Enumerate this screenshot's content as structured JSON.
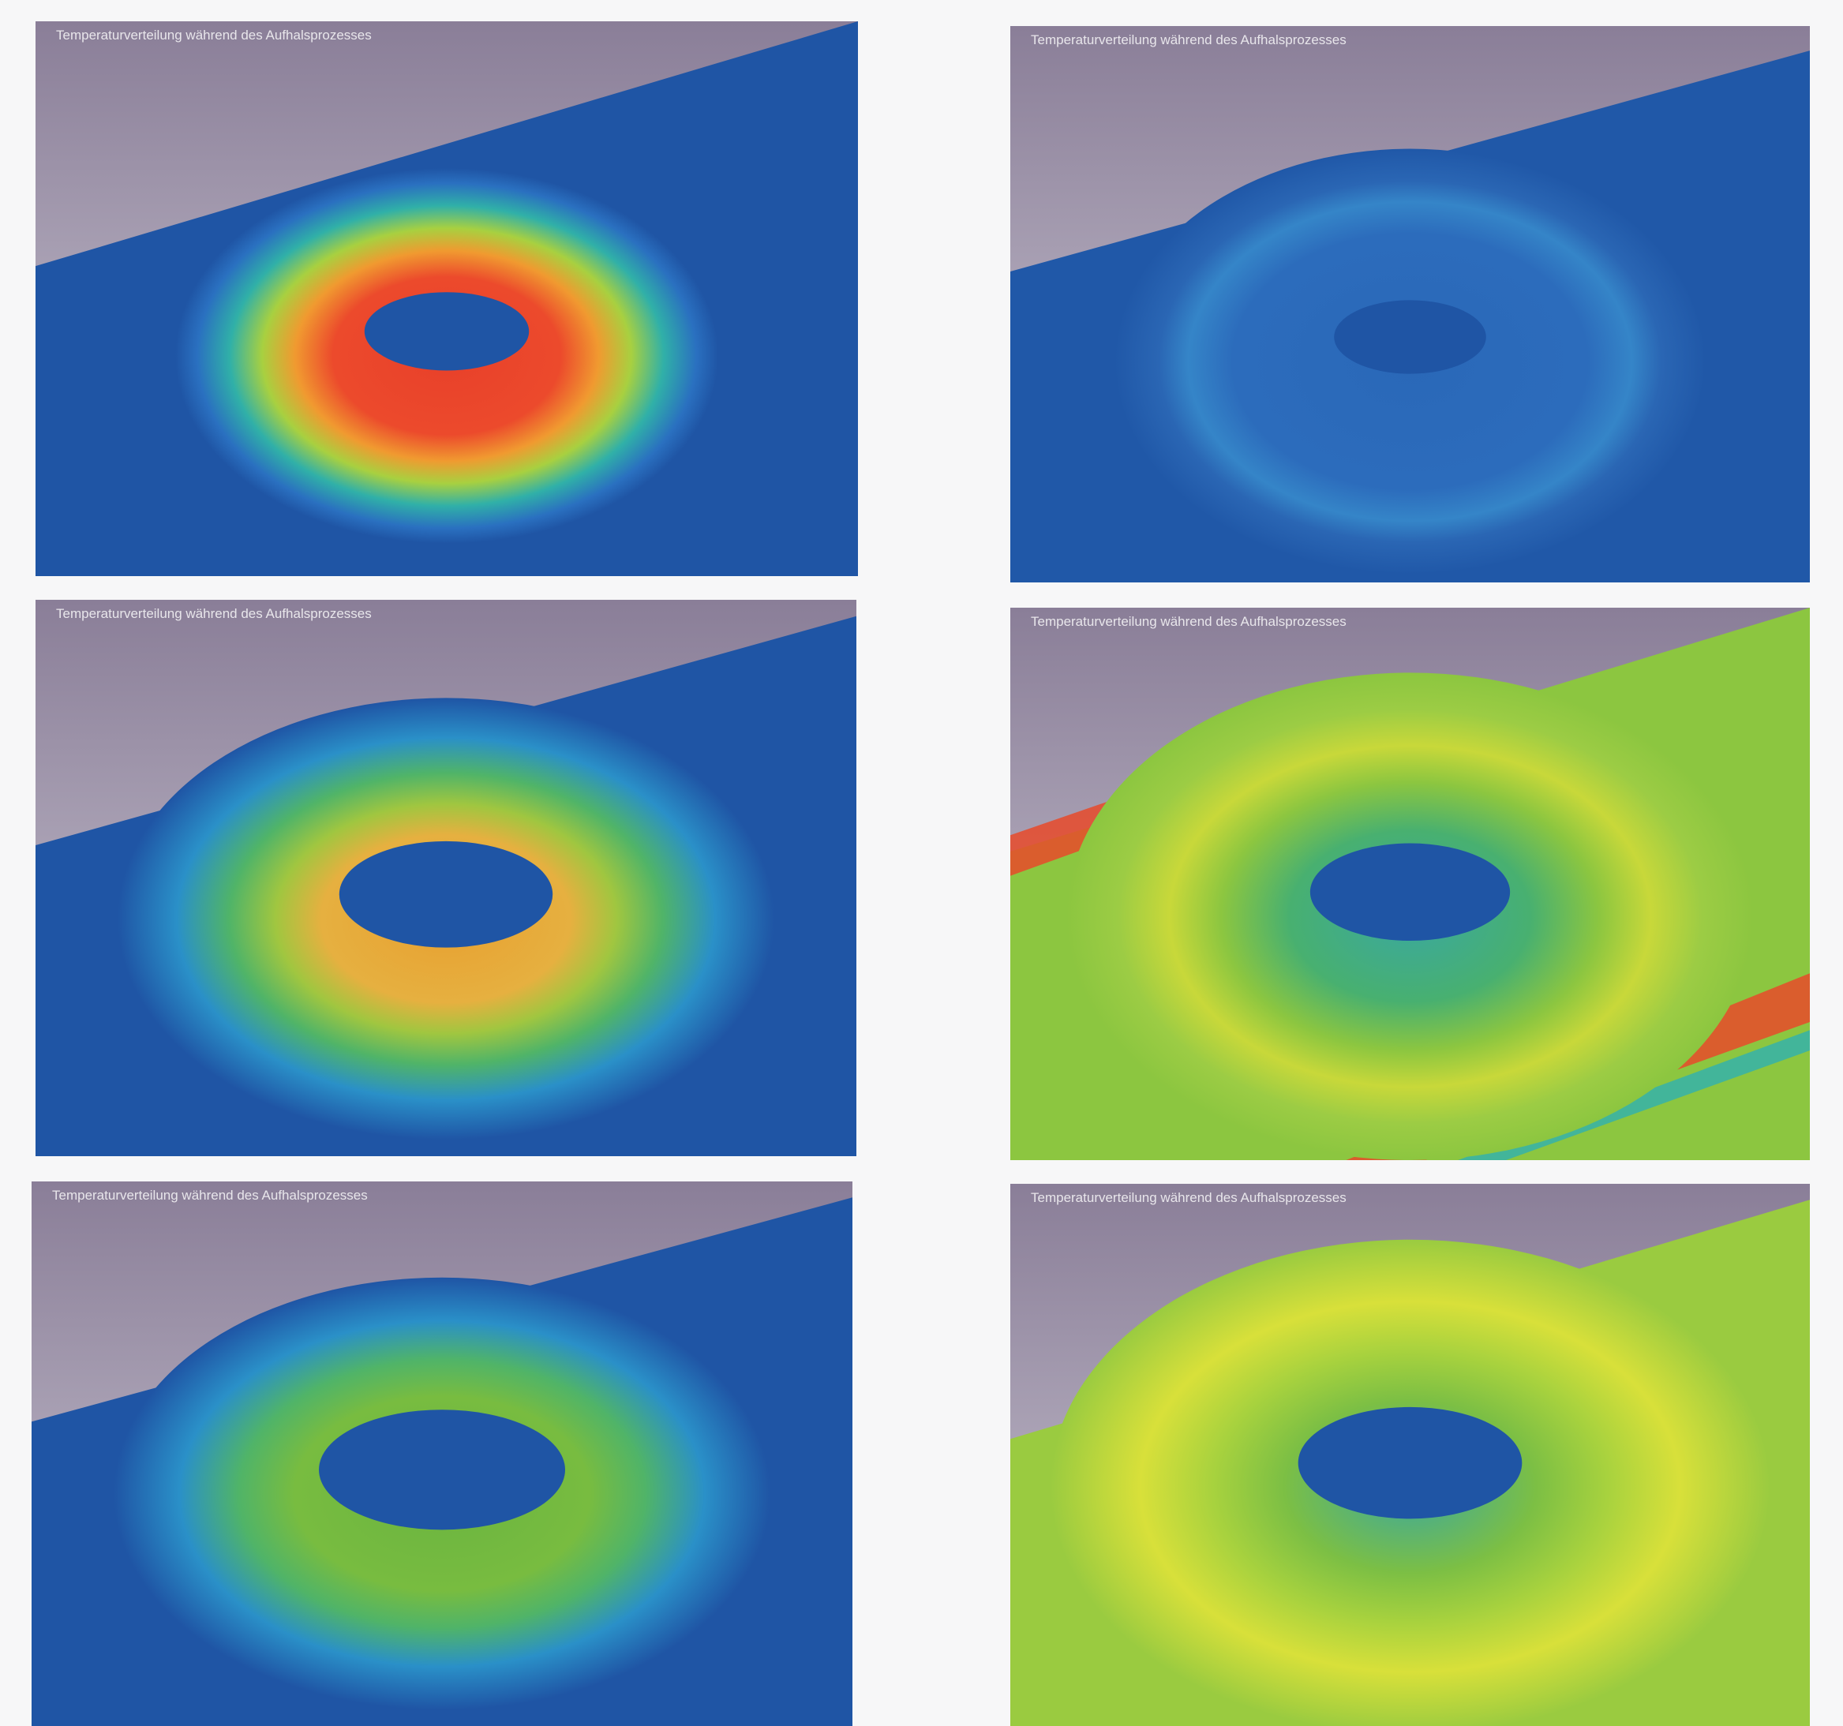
{
  "panels": [
    {
      "caption": "Temperaturverteilung während des Aufhalsprozesses"
    },
    {
      "caption": "Temperaturverteilung während des Aufhalsprozesses"
    },
    {
      "caption": "Temperaturverteilung während des Aufhalsprozesses"
    },
    {
      "caption": "Temperaturverteilung während des Aufhalsprozesses"
    },
    {
      "caption": "Temperaturverteilung während des Aufhalsprozesses"
    },
    {
      "caption": "Temperaturverteilung während des Aufhalsprozesses"
    }
  ]
}
